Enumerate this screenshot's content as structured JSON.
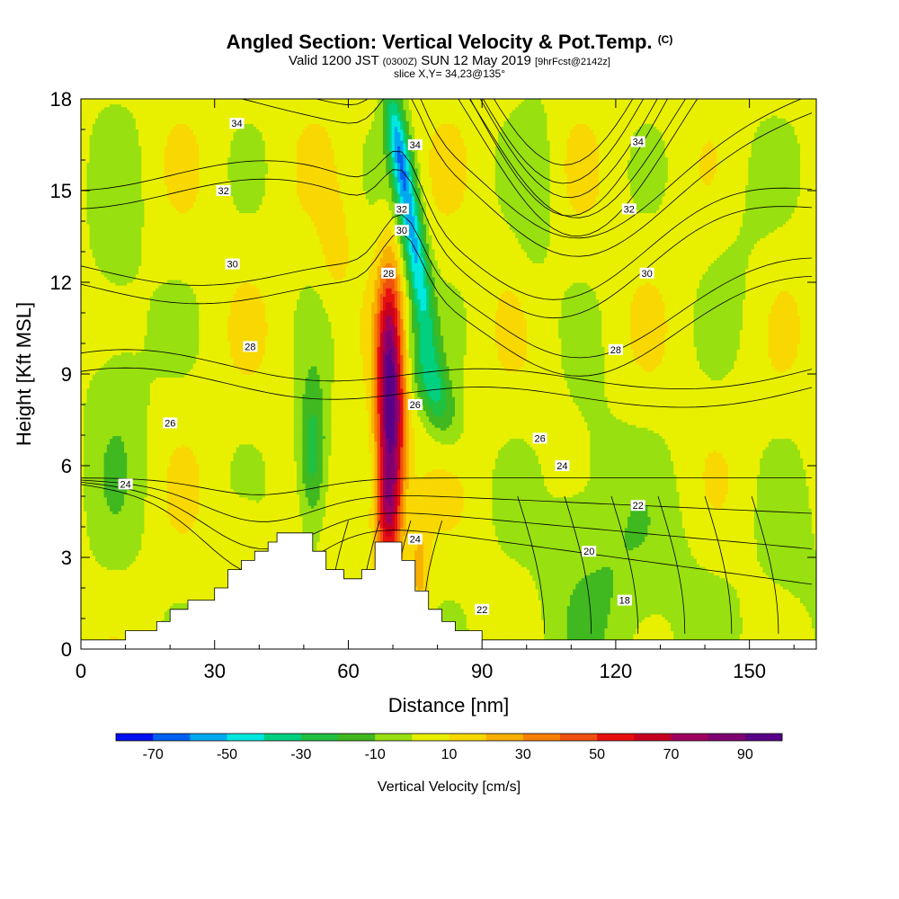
{
  "header": {
    "title_main": "Angled Section: Vertical Velocity & Pot.Temp.",
    "title_unit": "(C)",
    "valid_prefix": "Valid 1200 JST",
    "valid_utc": "(0300Z)",
    "valid_date": "SUN 12 May 2019",
    "valid_fcst": "[9hrFcst@2142z]",
    "slice": "slice X,Y= 34,23@135°"
  },
  "chart_data": {
    "type": "heatmap",
    "title": "Angled Section: Vertical Velocity & Pot.Temp. (C)",
    "xlabel": "Distance [nm]",
    "ylabel": "Height [Kft MSL]",
    "xlim": [
      0,
      165
    ],
    "ylim": [
      0,
      18
    ],
    "x_ticks": [
      0,
      30,
      60,
      90,
      120,
      150
    ],
    "y_ticks": [
      0,
      3,
      6,
      9,
      12,
      15,
      18
    ],
    "colorbar": {
      "title": "Vertical Velocity [cm/s]",
      "levels": [
        -80,
        -70,
        -60,
        -50,
        -40,
        -30,
        -20,
        -10,
        0,
        10,
        20,
        30,
        40,
        50,
        60,
        70,
        80,
        90,
        100
      ],
      "labels": [
        -70,
        -50,
        -30,
        -10,
        10,
        30,
        50,
        70,
        90
      ],
      "colors": [
        "#0010f0",
        "#0060f0",
        "#00a8f0",
        "#00e8e0",
        "#00d080",
        "#20c040",
        "#40b820",
        "#98e010",
        "#e8f000",
        "#f8d800",
        "#f8b000",
        "#f88000",
        "#f05010",
        "#e81010",
        "#c80020",
        "#a00060",
        "#800070",
        "#5a0088"
      ]
    },
    "vertical_velocity_features": [
      {
        "feature": "updraft core",
        "x_nm": 70,
        "base_kft": 3.5,
        "top_kft": 11.5,
        "max_cm_s": 95
      },
      {
        "feature": "downdraft west",
        "x_nm": 52,
        "base_kft": 3.8,
        "top_kft": 8.5,
        "min_cm_s": -35
      },
      {
        "feature": "downdraft upper",
        "x_nm": 74,
        "base_kft": 9,
        "top_kft": 18,
        "min_cm_s": -55
      },
      {
        "feature": "weak updraft",
        "x_nm": 55,
        "base_kft": 10,
        "top_kft": 15,
        "max_cm_s": 15
      }
    ],
    "pot_temp_contours": [
      {
        "value": 34,
        "labels_at": [
          {
            "x": 35,
            "y": 17.2
          },
          {
            "x": 75,
            "y": 16.5
          },
          {
            "x": 125,
            "y": 16.6
          }
        ]
      },
      {
        "value": 32,
        "labels_at": [
          {
            "x": 32,
            "y": 15.0
          },
          {
            "x": 72,
            "y": 14.4
          },
          {
            "x": 123,
            "y": 14.4
          }
        ]
      },
      {
        "value": 30,
        "labels_at": [
          {
            "x": 34,
            "y": 12.6
          },
          {
            "x": 72,
            "y": 13.7
          },
          {
            "x": 127,
            "y": 12.3
          }
        ]
      },
      {
        "value": 28,
        "labels_at": [
          {
            "x": 38,
            "y": 9.9
          },
          {
            "x": 69,
            "y": 12.3
          },
          {
            "x": 120,
            "y": 9.8
          }
        ]
      },
      {
        "value": 26,
        "labels_at": [
          {
            "x": 20,
            "y": 7.4
          },
          {
            "x": 75,
            "y": 8.0
          },
          {
            "x": 103,
            "y": 6.9
          }
        ]
      },
      {
        "value": 24,
        "labels_at": [
          {
            "x": 10,
            "y": 5.4
          },
          {
            "x": 75,
            "y": 3.6
          },
          {
            "x": 108,
            "y": 6.0
          }
        ]
      },
      {
        "value": 22,
        "labels_at": [
          {
            "x": 90,
            "y": 1.3
          },
          {
            "x": 125,
            "y": 4.7
          }
        ]
      },
      {
        "value": 20,
        "labels_at": [
          {
            "x": 114,
            "y": 3.2
          }
        ]
      },
      {
        "value": 18,
        "labels_at": [
          {
            "x": 122,
            "y": 1.6
          }
        ]
      }
    ],
    "terrain_kft": [
      [
        0,
        0.3
      ],
      [
        10,
        0.3
      ],
      [
        10,
        0.6
      ],
      [
        17,
        0.6
      ],
      [
        17,
        0.9
      ],
      [
        20,
        0.9
      ],
      [
        20,
        1.3
      ],
      [
        24,
        1.3
      ],
      [
        24,
        1.6
      ],
      [
        30,
        1.6
      ],
      [
        30,
        2.0
      ],
      [
        33,
        2.0
      ],
      [
        33,
        2.6
      ],
      [
        36,
        2.6
      ],
      [
        36,
        2.9
      ],
      [
        39,
        2.9
      ],
      [
        39,
        3.2
      ],
      [
        42,
        3.2
      ],
      [
        42,
        3.5
      ],
      [
        44,
        3.5
      ],
      [
        44,
        3.8
      ],
      [
        52,
        3.8
      ],
      [
        52,
        3.2
      ],
      [
        55,
        3.2
      ],
      [
        55,
        2.6
      ],
      [
        59,
        2.6
      ],
      [
        59,
        2.3
      ],
      [
        63,
        2.3
      ],
      [
        63,
        2.6
      ],
      [
        66,
        2.6
      ],
      [
        66,
        3.5
      ],
      [
        72,
        3.5
      ],
      [
        72,
        2.9
      ],
      [
        75,
        2.9
      ],
      [
        75,
        1.9
      ],
      [
        78,
        1.9
      ],
      [
        78,
        1.3
      ],
      [
        81,
        1.3
      ],
      [
        81,
        0.9
      ],
      [
        84,
        0.9
      ],
      [
        84,
        0.6
      ],
      [
        90,
        0.6
      ],
      [
        90,
        0.3
      ],
      [
        165,
        0.3
      ]
    ]
  }
}
